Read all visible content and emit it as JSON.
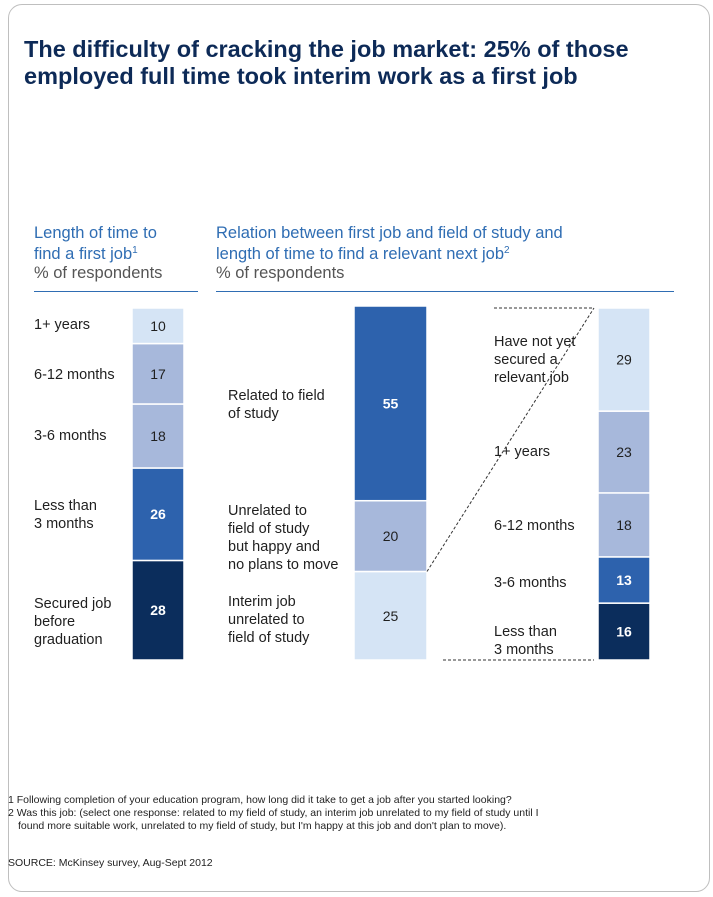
{
  "title": "The difficulty of cracking the job market: 25% of those employed full time took interim work as a first job",
  "left_panel": {
    "heading_line1": "Length of time to",
    "heading_line2": "find a first job",
    "heading_note": "1",
    "subtitle": "% of respondents"
  },
  "right_panel": {
    "heading_line1": "Relation between first job and field of study and",
    "heading_line2": "length of time to find a relevant next job",
    "heading_note": "2",
    "subtitle": "% of respondents"
  },
  "chart_data": [
    {
      "type": "bar",
      "stacked": true,
      "title": "Length of time to find a first job",
      "unit": "% of respondents",
      "categories": [
        "Secured job before graduation",
        "Less than 3 months",
        "3-6 months",
        "6-12 months",
        "1+ years"
      ],
      "values": [
        28,
        26,
        18,
        17,
        10
      ],
      "colors": [
        "#0b2d5c",
        "#2d62ad",
        "#a7b8db",
        "#a7b8db",
        "#d5e4f5"
      ]
    },
    {
      "type": "bar",
      "stacked": true,
      "title": "Relation between first job and field of study",
      "unit": "% of respondents",
      "categories": [
        "Interim job unrelated to field of study",
        "Unrelated to field of study but happy and no plans to move",
        "Related to field of study"
      ],
      "values": [
        25,
        20,
        55
      ],
      "colors": [
        "#d5e4f5",
        "#a7b8db",
        "#2d62ad"
      ]
    },
    {
      "type": "bar",
      "stacked": true,
      "title": "Length of time to find a relevant next job",
      "unit": "% of respondents",
      "categories": [
        "Less than 3 months",
        "3-6 months",
        "6-12 months",
        "1+ years",
        "Have not yet secured a relevant job"
      ],
      "values": [
        16,
        13,
        18,
        23,
        29
      ],
      "colors": [
        "#0b2d5c",
        "#2d62ad",
        "#a7b8db",
        "#a7b8db",
        "#d5e4f5"
      ]
    }
  ],
  "left_labels": {
    "years_1plus": "1+ years",
    "m6_12": "6-12 months",
    "m3_6": "3-6 months",
    "lt3_line1": "Less than",
    "lt3_line2": "3 months",
    "secured_line1": "Secured job",
    "secured_line2": "before",
    "secured_line3": "graduation"
  },
  "middle_labels": {
    "related_line1": "Related to field",
    "related_line2": "of study",
    "unrelated_line1": "Unrelated to",
    "unrelated_line2": "field of study",
    "unrelated_line3": "but happy and",
    "unrelated_line4": "no plans to move",
    "interim_line1": "Interim job",
    "interim_line2": "unrelated to",
    "interim_line3": "field of study"
  },
  "right_labels": {
    "notyet_line1": "Have not yet",
    "notyet_line2": "secured a",
    "notyet_line3": "relevant job",
    "years_1plus": "1+ years",
    "m6_12": "6-12 months",
    "m3_6": "3-6 months",
    "lt3_line1": "Less than",
    "lt3_line2": "3 months"
  },
  "footnotes": {
    "note1": "1 Following completion of your education program, how long did it take to get a job after you started looking?",
    "note2_line1": "2 Was this job: (select one response: related to my field of study, an interim job unrelated to my field of study until I",
    "note2_line2": "found more suitable work, unrelated to my field of study, but I'm happy at this job and don't plan to move).",
    "source": "SOURCE: McKinsey survey, Aug-Sept 2012"
  }
}
